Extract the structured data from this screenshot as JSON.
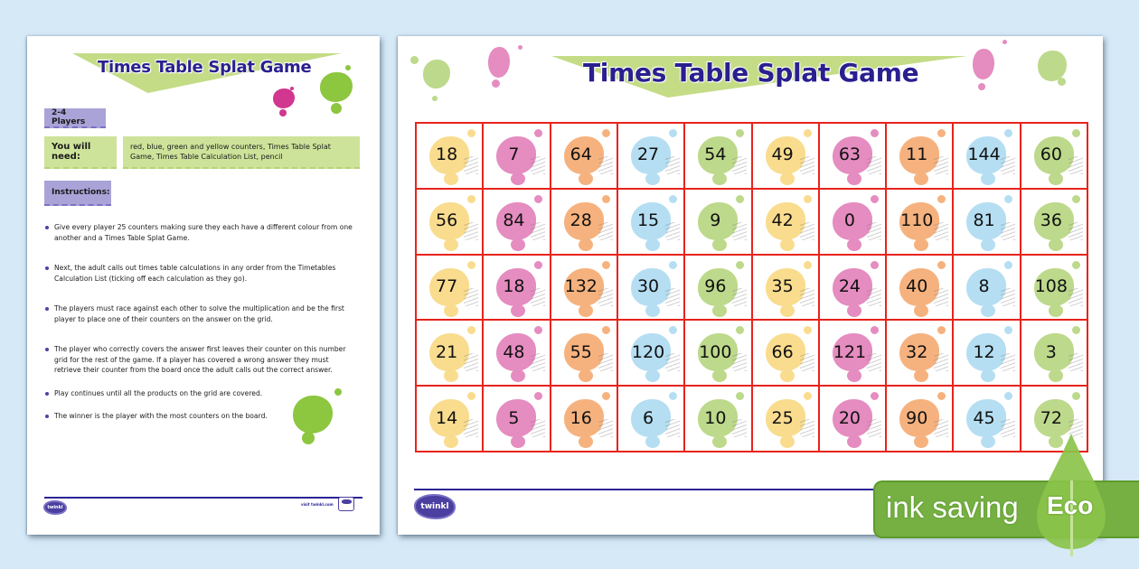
{
  "colors": {
    "background": "#d5e9f7",
    "title": "#2a1f8f",
    "banner": "#c4dc86",
    "grid_border": "#e8231c",
    "splat_yellow": "#f9dc8e",
    "splat_pink": "#e58cc0",
    "splat_orange": "#f6b27e",
    "splat_blue": "#b5def2",
    "splat_green": "#bdd98b",
    "eco_green": "#76b043"
  },
  "left_page": {
    "title": "Times Table Splat Game",
    "players": "2-4 Players",
    "you_will_need_label": "You will need:",
    "you_will_need_value": "red, blue, green and yellow counters, Times Table Splat Game, Times Table Calculation List, pencil",
    "instructions_label": "Instructions:",
    "instructions": [
      "Give every player 25 counters making sure they each have a different colour from one another and a Times Table Splat Game.",
      "Next, the adult calls out times table calculations in any order from the Timetables Calculation List (ticking off each calculation as they go).",
      "The players must race against each other to solve the multiplication and be the first player to place one of their counters on the answer on the grid.",
      "The player who correctly covers the answer first leaves their counter on this number grid for the rest of the game. If a player has covered a wrong answer they must retrieve their counter from the board once the adult calls out the correct answer.",
      "Play continues until all the products on the grid are covered.",
      "The winner is the player with the most counters on the board."
    ],
    "footer": {
      "logo": "twinkl",
      "visit": "visit twinkl.com"
    }
  },
  "right_page": {
    "title": "Times Table Splat Game",
    "splat_color_cycle": [
      "yellow",
      "pink",
      "orange",
      "blue",
      "green"
    ],
    "grid": [
      [
        "18",
        "7",
        "64",
        "27",
        "54",
        "49",
        "63",
        "11",
        "144",
        "60"
      ],
      [
        "56",
        "84",
        "28",
        "15",
        "9",
        "42",
        "0",
        "110",
        "81",
        "36"
      ],
      [
        "77",
        "18",
        "132",
        "30",
        "96",
        "35",
        "24",
        "40",
        "8",
        "108"
      ],
      [
        "21",
        "48",
        "55",
        "120",
        "100",
        "66",
        "121",
        "32",
        "12",
        "3"
      ],
      [
        "14",
        "5",
        "16",
        "6",
        "10",
        "25",
        "20",
        "90",
        "45",
        "72"
      ]
    ],
    "footer": {
      "logo": "twinkl"
    }
  },
  "eco_badge": {
    "label": "ink saving",
    "tag": "Eco",
    "icon": "leaf-icon"
  }
}
